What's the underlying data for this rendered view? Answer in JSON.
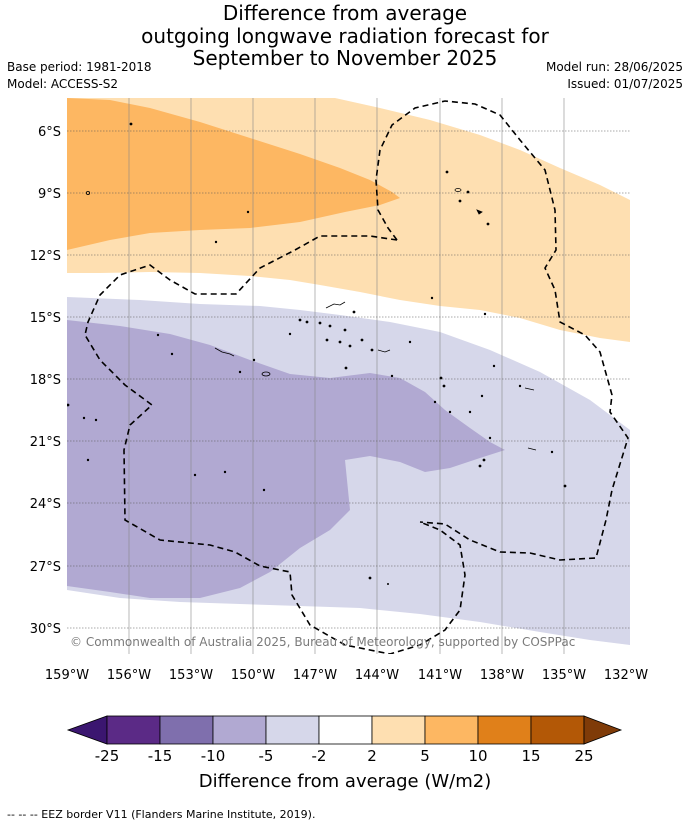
{
  "header": {
    "title_lines": [
      "Difference from average",
      "outgoing longwave radiation forecast for",
      "September to November 2025"
    ],
    "base_period": "Base period: 1981-2018",
    "model": "Model: ACCESS-S2",
    "model_run": "Model run: 28/06/2025",
    "issued": "Issued: 01/07/2025"
  },
  "map": {
    "lon_ticks": [
      "159°W",
      "156°W",
      "153°W",
      "150°W",
      "147°W",
      "144°W",
      "141°W",
      "138°W",
      "135°W",
      "132°W"
    ],
    "lat_ticks": [
      "6°S",
      "9°S",
      "12°S",
      "15°S",
      "18°S",
      "21°S",
      "24°S",
      "27°S",
      "30°S"
    ],
    "copyright": "© Commonwealth of Australia 2025, Bureau of Meteorology, supported by COSPPac"
  },
  "colorbar": {
    "ticks": [
      "-25",
      "-15",
      "-10",
      "-5",
      "-2",
      "2",
      "5",
      "10",
      "15",
      "25"
    ],
    "colors": [
      "#3b1670",
      "#5b2a86",
      "#7f6fad",
      "#b1a9d2",
      "#d6d7ea",
      "#ffffff",
      "#fedfb1",
      "#fdb762",
      "#e0801a",
      "#b35806",
      "#7f3b08"
    ],
    "label": "Difference from average (W/m2)"
  },
  "legend": {
    "eez": "--  --  -- EEZ border V11 (Flanders Marine Institute, 2019)."
  }
}
